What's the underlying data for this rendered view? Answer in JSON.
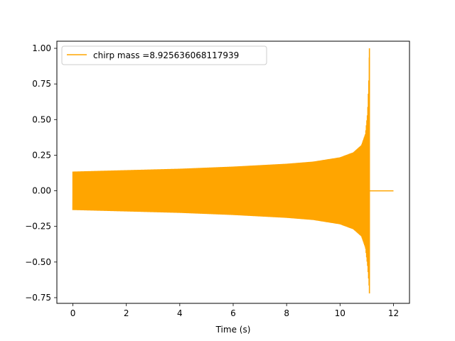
{
  "chart_data": {
    "type": "line",
    "title": "",
    "xlabel": "Time (s)",
    "ylabel": "",
    "xlim": [
      -0.6,
      12.6
    ],
    "ylim": [
      -0.79,
      1.05
    ],
    "xticks": [
      0,
      2,
      4,
      6,
      8,
      10,
      12
    ],
    "yticks": [
      -0.75,
      -0.5,
      -0.25,
      0.0,
      0.25,
      0.5,
      0.75,
      1.0
    ],
    "xtick_labels": [
      "0",
      "2",
      "4",
      "6",
      "8",
      "10",
      "12"
    ],
    "ytick_labels": [
      "−0.75",
      "−0.50",
      "−0.25",
      "0.00",
      "0.25",
      "0.50",
      "0.75",
      "1.00"
    ],
    "grid": false,
    "legend_position": "top-left",
    "series": [
      {
        "name": "chirp mass =8.925636068117939",
        "color": "#ffa500",
        "envelope": {
          "t_start": 0,
          "t_merger": 11.1,
          "t_end": 12.0,
          "amplitude_start": 0.135,
          "peak_max": 1.0,
          "peak_min": -0.72,
          "points": [
            {
              "t": 0.0,
              "upper": 0.135,
              "lower": -0.135
            },
            {
              "t": 2.0,
              "upper": 0.145,
              "lower": -0.145
            },
            {
              "t": 4.0,
              "upper": 0.155,
              "lower": -0.155
            },
            {
              "t": 6.0,
              "upper": 0.17,
              "lower": -0.17
            },
            {
              "t": 8.0,
              "upper": 0.19,
              "lower": -0.19
            },
            {
              "t": 9.0,
              "upper": 0.205,
              "lower": -0.205
            },
            {
              "t": 10.0,
              "upper": 0.235,
              "lower": -0.235
            },
            {
              "t": 10.5,
              "upper": 0.27,
              "lower": -0.27
            },
            {
              "t": 10.8,
              "upper": 0.32,
              "lower": -0.32
            },
            {
              "t": 10.95,
              "upper": 0.4,
              "lower": -0.4
            },
            {
              "t": 11.03,
              "upper": 0.55,
              "lower": -0.53
            },
            {
              "t": 11.08,
              "upper": 0.8,
              "lower": -0.65
            },
            {
              "t": 11.1,
              "upper": 1.0,
              "lower": -0.72
            }
          ],
          "post_merger_value": 0.0
        }
      }
    ]
  }
}
